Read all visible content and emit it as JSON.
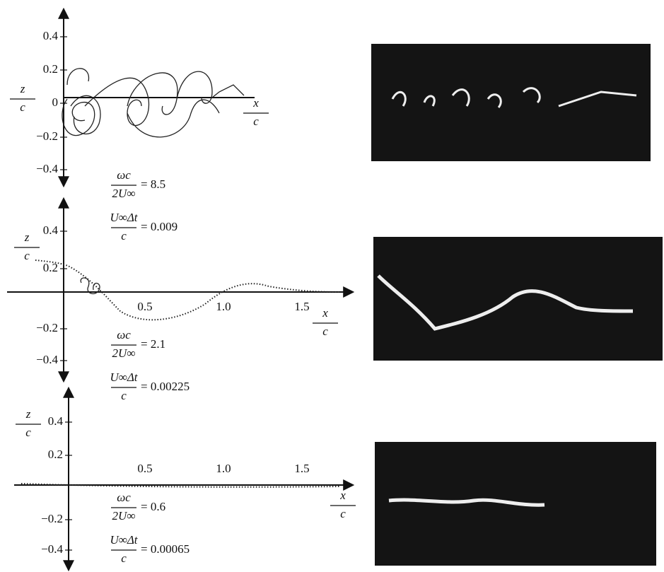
{
  "panels": [
    {
      "y_axis": {
        "numerator": "z",
        "denominator": "c"
      },
      "x_axis": {
        "numerator": "x",
        "denominator": "c"
      },
      "yticks": [
        "0.4",
        "0.2",
        "0",
        "−0.2",
        "−0.4"
      ],
      "params": [
        {
          "numerator": "ωc",
          "denominator": "2U∞",
          "value": "= 8.5"
        },
        {
          "numerator": "U∞Δt",
          "denominator": "c",
          "value": "= 0.009"
        }
      ]
    },
    {
      "y_axis": {
        "numerator": "z",
        "denominator": "c"
      },
      "x_axis": {
        "numerator": "x",
        "denominator": "c"
      },
      "yticks": [
        "0.4",
        "0.2",
        "−0.2",
        "−0.4"
      ],
      "xticks": [
        "0.5",
        "1.0",
        "1.5"
      ],
      "params": [
        {
          "numerator": "ωc",
          "denominator": "2U∞",
          "value": "= 2.1"
        },
        {
          "numerator": "U∞Δt",
          "denominator": "c",
          "value": "= 0.00225"
        }
      ]
    },
    {
      "y_axis": {
        "numerator": "z",
        "denominator": "c"
      },
      "x_axis": {
        "numerator": "x",
        "denominator": "c"
      },
      "yticks": [
        "0.4",
        "0.2",
        "−0.2",
        "−0.4"
      ],
      "xticks": [
        "0.5",
        "1.0",
        "1.5"
      ],
      "params": [
        {
          "numerator": "ωc",
          "denominator": "2U∞",
          "value": "= 0.6"
        },
        {
          "numerator": "U∞Δt",
          "denominator": "c",
          "value": "= 0.00065"
        }
      ]
    }
  ]
}
